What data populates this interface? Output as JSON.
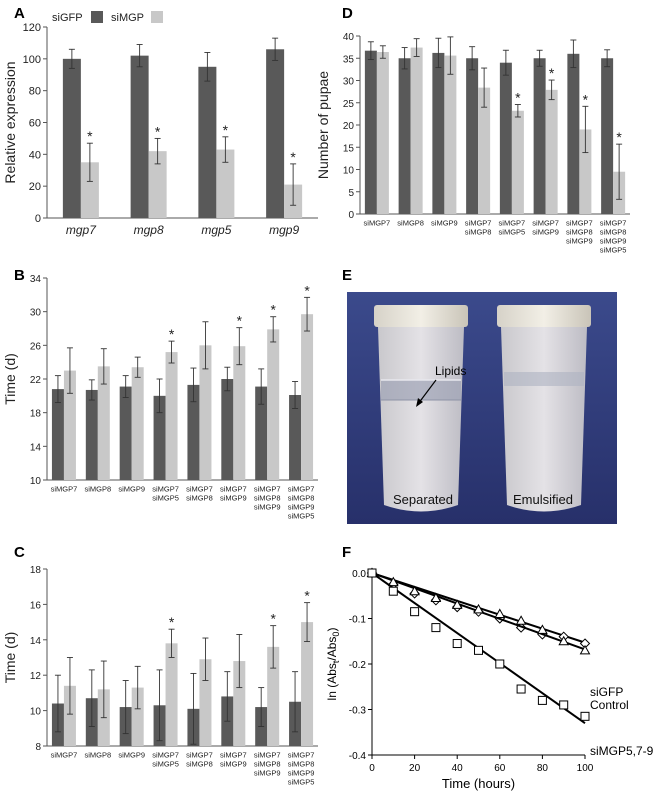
{
  "panel_letters": {
    "A": "A",
    "B": "B",
    "C": "C",
    "D": "D",
    "E": "E",
    "F": "F"
  },
  "colors": {
    "dark_bar": "#595959",
    "light_bar": "#c8c8c8",
    "photo_bg": "#2f3a78"
  },
  "photo": {
    "label_lipids": "Lipids",
    "label_separated": "Separated",
    "label_emulsified": "Emulsified"
  },
  "chart_data": [
    {
      "panel": "A",
      "type": "bar",
      "ylabel": "Relative expression",
      "ylim": [
        0,
        120
      ],
      "yticks": [
        0,
        20,
        40,
        60,
        80,
        100,
        120
      ],
      "categories": [
        "mgp7",
        "mgp8",
        "mgp5",
        "mgp9"
      ],
      "legend": {
        "placement": "top-left",
        "entries": [
          "siGFP",
          "siMGP"
        ]
      },
      "series": [
        {
          "name": "siGFP",
          "values": [
            100,
            102,
            95,
            106
          ],
          "errors": [
            6,
            7,
            9,
            7
          ]
        },
        {
          "name": "siMGP",
          "values": [
            35,
            42,
            43,
            21
          ],
          "errors": [
            12,
            8,
            8,
            13
          ]
        }
      ],
      "significant": [
        1,
        1,
        1,
        1
      ],
      "sig_marker": "*"
    },
    {
      "panel": "B",
      "type": "bar",
      "ylabel": "Time (d)",
      "ylim": [
        10,
        34
      ],
      "yticks": [
        10,
        14,
        18,
        22,
        26,
        30,
        34
      ],
      "categories": [
        [
          "siMGP7"
        ],
        [
          "siMGP8"
        ],
        [
          "siMGP9"
        ],
        [
          "siMGP7",
          "siMGP5"
        ],
        [
          "siMGP7",
          "siMGP8"
        ],
        [
          "siMGP7",
          "siMGP9"
        ],
        [
          "siMGP7",
          "siMGP8",
          "siMGP9"
        ],
        [
          "siMGP7",
          "siMGP8",
          "siMGP9",
          "siMGP5"
        ]
      ],
      "series": [
        {
          "values": [
            20.8,
            20.7,
            21.1,
            20.0,
            21.3,
            22.0,
            21.1,
            20.1
          ],
          "errors": [
            1.6,
            1.2,
            1.3,
            2.0,
            2.0,
            1.4,
            2.1,
            1.6
          ]
        },
        {
          "values": [
            23.0,
            23.5,
            23.4,
            25.2,
            26.0,
            25.9,
            27.9,
            29.7
          ],
          "errors": [
            2.7,
            2.1,
            1.2,
            1.3,
            2.8,
            2.2,
            1.5,
            2.0
          ]
        }
      ],
      "significant": [
        0,
        0,
        0,
        1,
        0,
        1,
        1,
        1
      ],
      "sig_marker": "*"
    },
    {
      "panel": "C",
      "type": "bar",
      "ylabel": "Time (d)",
      "ylim": [
        8,
        18
      ],
      "yticks": [
        8,
        10,
        12,
        14,
        16,
        18
      ],
      "categories": [
        [
          "siMGP7"
        ],
        [
          "siMGP8"
        ],
        [
          "siMGP9"
        ],
        [
          "siMGP7",
          "siMGP5"
        ],
        [
          "siMGP7",
          "siMGP8"
        ],
        [
          "siMGP7",
          "siMGP9"
        ],
        [
          "siMGP7",
          "siMGP8",
          "siMGP9"
        ],
        [
          "siMGP7",
          "siMGP8",
          "siMGP9",
          "siMGP5"
        ]
      ],
      "series": [
        {
          "values": [
            10.4,
            10.7,
            10.2,
            10.3,
            10.1,
            10.8,
            10.2,
            10.5
          ],
          "errors": [
            1.6,
            1.6,
            1.5,
            2.0,
            2.0,
            1.4,
            1.1,
            1.7
          ]
        },
        {
          "values": [
            11.4,
            11.2,
            11.3,
            13.8,
            12.9,
            12.8,
            13.6,
            15.0
          ],
          "errors": [
            1.6,
            1.6,
            1.2,
            0.8,
            1.2,
            1.5,
            1.2,
            1.1
          ]
        }
      ],
      "significant": [
        0,
        0,
        0,
        1,
        0,
        0,
        1,
        1
      ],
      "sig_marker": "*"
    },
    {
      "panel": "D",
      "type": "bar",
      "ylabel": "Number of pupae",
      "ylim": [
        0,
        40
      ],
      "yticks": [
        0,
        5,
        10,
        15,
        20,
        25,
        30,
        35,
        40
      ],
      "categories": [
        [
          "siMGP7"
        ],
        [
          "siMGP8"
        ],
        [
          "siMGP9"
        ],
        [
          "siMGP7",
          "siMGP8"
        ],
        [
          "siMGP7",
          "siMGP5"
        ],
        [
          "siMGP7",
          "siMGP9"
        ],
        [
          "siMGP7",
          "siMGP8",
          "siMGP9"
        ],
        [
          "siMGP7",
          "siMGP8",
          "siMGP9",
          "siMGP5"
        ]
      ],
      "series": [
        {
          "values": [
            36.7,
            35.0,
            36.2,
            35.0,
            34.0,
            35.0,
            36.0,
            35.0
          ],
          "errors": [
            2.0,
            2.4,
            3.3,
            2.6,
            2.8,
            1.8,
            3.1,
            1.9
          ]
        },
        {
          "values": [
            36.4,
            37.4,
            35.6,
            28.4,
            23.2,
            27.9,
            19.0,
            9.5
          ],
          "errors": [
            1.4,
            2.0,
            4.2,
            4.4,
            1.4,
            2.2,
            5.2,
            6.2
          ]
        }
      ],
      "significant": [
        0,
        0,
        0,
        0,
        1,
        1,
        1,
        1
      ],
      "sig_marker": "*"
    },
    {
      "panel": "F",
      "type": "scatter",
      "xlabel": "Time (hours)",
      "ylabel_base": "ln (Abs",
      "ylabel_sub1": "t",
      "ylabel_mid": "/Abs",
      "ylabel_sub2": "0",
      "ylabel_end": ")",
      "xlim": [
        0,
        100
      ],
      "ylim": [
        -0.4,
        0.0
      ],
      "xticks": [
        0,
        20,
        40,
        60,
        80,
        100
      ],
      "yticks": [
        -0.4,
        -0.3,
        -0.2,
        -0.1,
        0.0
      ],
      "series": [
        {
          "name": "siGFP",
          "marker": "diamond",
          "x": [
            0,
            10,
            20,
            30,
            40,
            50,
            60,
            70,
            80,
            90,
            100
          ],
          "y": [
            0.0,
            -0.025,
            -0.045,
            -0.06,
            -0.075,
            -0.085,
            -0.1,
            -0.12,
            -0.135,
            -0.14,
            -0.155
          ],
          "fit": [
            0.0,
            -0.153
          ]
        },
        {
          "name": "Control",
          "marker": "triangle",
          "x": [
            0,
            10,
            20,
            30,
            40,
            50,
            60,
            70,
            80,
            90,
            100
          ],
          "y": [
            0.0,
            -0.02,
            -0.04,
            -0.055,
            -0.07,
            -0.08,
            -0.09,
            -0.105,
            -0.125,
            -0.15,
            -0.17
          ],
          "fit": [
            0.0,
            -0.168
          ]
        },
        {
          "name": "siMGP5,7-9",
          "marker": "square",
          "x": [
            0,
            10,
            20,
            30,
            40,
            50,
            60,
            70,
            80,
            90,
            100
          ],
          "y": [
            0.0,
            -0.04,
            -0.085,
            -0.12,
            -0.155,
            -0.17,
            -0.2,
            -0.255,
            -0.28,
            -0.29,
            -0.315
          ],
          "fit": [
            0.0,
            -0.33
          ]
        }
      ]
    }
  ]
}
